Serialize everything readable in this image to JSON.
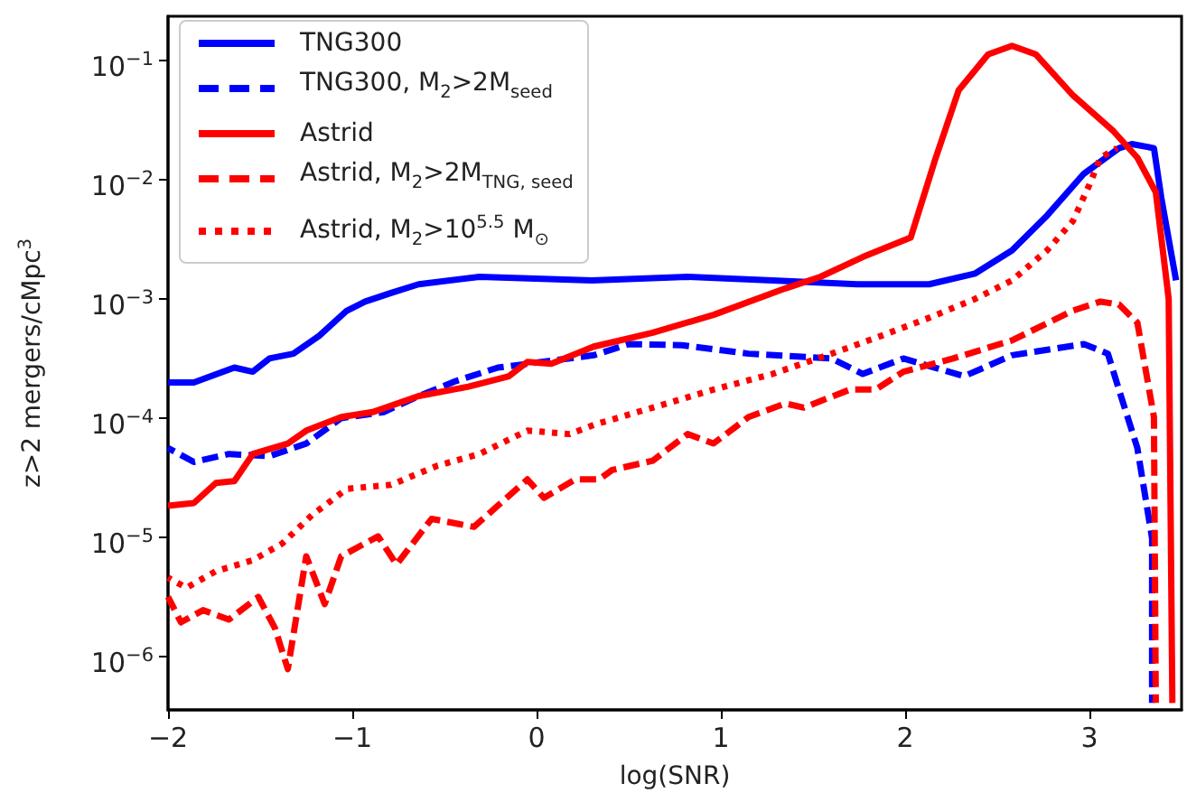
{
  "chart_data": {
    "type": "line",
    "xlabel": "log(SNR)",
    "ylabel": "z>2 mergers/cMpc$^{3}$",
    "log": "y",
    "grid": false,
    "legend": "top left",
    "marker": "none",
    "xlim": [
      -2,
      3.5
    ],
    "xticks": [
      {
        "value": -2,
        "label": "−2"
      },
      {
        "value": -1,
        "label": "−1"
      },
      0,
      1,
      2,
      3
    ],
    "ylim": [
      3.5e-07,
      0.23
    ],
    "yticks": [
      {
        "value": 1e-06,
        "label": "10$^{−6}$"
      },
      {
        "value": 1e-05,
        "label": "10$^{−5}$"
      },
      {
        "value": 0.0001,
        "label": "10$^{−4}$"
      },
      {
        "value": 0.001,
        "label": "10$^{−3}$"
      },
      {
        "value": 0.01,
        "label": "10$^{−2}$"
      },
      {
        "value": 0.1,
        "label": "10$^{−1}$"
      }
    ],
    "series": [
      {
        "name": "TNG300",
        "color": "#0000ff",
        "line_style": "solid",
        "x": [
          -2,
          -1.86,
          -1.64,
          -1.54,
          -1.45,
          -1.32,
          -1.18,
          -1.03,
          -0.93,
          -0.79,
          -0.64,
          -0.31,
          0.3,
          0.82,
          1.28,
          1.74,
          2.13,
          2.38,
          2.58,
          2.77,
          2.97,
          3.16,
          3.23,
          3.35,
          3.39,
          3.47
        ],
        "values": [
          0.000195,
          0.000195,
          0.00026,
          0.00024,
          0.00031,
          0.00034,
          0.00048,
          0.00078,
          0.00093,
          0.0011,
          0.0013,
          0.0015,
          0.0014,
          0.0015,
          0.0014,
          0.0013,
          0.0013,
          0.0016,
          0.0025,
          0.0049,
          0.011,
          0.018,
          0.0195,
          0.018,
          0.0069,
          0.0014
        ]
      },
      {
        "name": "TNG300, M$_{2}$>2M$_{seed}$",
        "color": "#0000ff",
        "line_style": "dashed",
        "x": [
          -2,
          -1.86,
          -1.67,
          -1.45,
          -1.25,
          -1.06,
          -0.83,
          -0.64,
          -0.44,
          -0.21,
          0.31,
          0.5,
          0.79,
          1.15,
          1.6,
          1.77,
          1.99,
          2.32,
          2.58,
          2.97,
          3.1,
          3.16,
          3.26,
          3.34,
          3.34
        ],
        "values": [
          5.5e-05,
          4.2e-05,
          4.9e-05,
          4.7e-05,
          6e-05,
          9.8e-05,
          0.00011,
          0.00015,
          0.0002,
          0.00026,
          0.00033,
          0.00041,
          0.0004,
          0.00034,
          0.00031,
          0.00023,
          0.00031,
          0.00022,
          0.00033,
          0.00041,
          0.00034,
          0.00017,
          5.5e-05,
          9.6e-06,
          4e-07
        ]
      },
      {
        "name": "Astrid",
        "color": "#ff0000",
        "line_style": "solid",
        "x": [
          -2,
          -1.86,
          -1.74,
          -1.64,
          -1.54,
          -1.35,
          -1.25,
          -1.06,
          -0.89,
          -0.64,
          -0.37,
          -0.15,
          -0.05,
          0.08,
          0.31,
          0.63,
          0.96,
          1.35,
          1.54,
          1.77,
          2.03,
          2.16,
          2.29,
          2.45,
          2.58,
          2.71,
          2.91,
          3.13,
          3.26,
          3.36,
          3.43,
          3.45
        ],
        "values": [
          1.8e-05,
          1.9e-05,
          2.8e-05,
          2.9e-05,
          4.9e-05,
          6e-05,
          7.7e-05,
          0.0001,
          0.00011,
          0.00015,
          0.00018,
          0.00022,
          0.00029,
          0.00028,
          0.00039,
          0.00051,
          0.00072,
          0.0012,
          0.0015,
          0.0022,
          0.0032,
          0.014,
          0.055,
          0.11,
          0.13,
          0.11,
          0.05,
          0.025,
          0.015,
          0.0077,
          0.00098,
          4e-07
        ]
      },
      {
        "name": "Astrid, M$_{2}$>2M$_{TNG, seed}$",
        "color": "#ff0000",
        "line_style": "dashed",
        "x": [
          -2,
          -1.93,
          -1.81,
          -1.67,
          -1.51,
          -1.42,
          -1.35,
          -1.25,
          -1.15,
          -1.06,
          -0.86,
          -0.76,
          -0.57,
          -0.34,
          -0.05,
          0.04,
          0.21,
          0.34,
          0.41,
          0.63,
          0.82,
          0.96,
          1.15,
          1.35,
          1.45,
          1.7,
          1.84,
          1.99,
          2.26,
          2.58,
          2.91,
          3.06,
          3.16,
          3.26,
          3.35,
          3.36
        ],
        "values": [
          3.1e-06,
          1.9e-06,
          2.4e-06,
          2e-06,
          3.1e-06,
          1.7e-06,
          7.7e-07,
          6.8e-06,
          2.7e-06,
          6.8e-06,
          1e-05,
          5.8e-06,
          1.4e-05,
          1.2e-05,
          3e-05,
          2.1e-05,
          3e-05,
          3e-05,
          3.6e-05,
          4.3e-05,
          7.2e-05,
          6e-05,
          0.0001,
          0.00013,
          0.00012,
          0.00017,
          0.00017,
          0.00024,
          0.00031,
          0.00044,
          0.00078,
          0.00093,
          0.00088,
          0.00062,
          0.0001,
          4e-07
        ]
      },
      {
        "name": "Astrid, M$_{2}$>10$^{5.5}$ M$_{⊙}$",
        "color": "#ff0000",
        "line_style": "dotted",
        "x": [
          -2,
          -1.9,
          -1.74,
          -1.54,
          -1.38,
          -1.22,
          -1.03,
          -0.79,
          -0.54,
          -0.31,
          -0.05,
          0.18,
          0.31,
          0.63,
          0.96,
          1.28,
          1.6,
          1.87,
          2.13,
          2.38,
          2.58,
          2.77,
          2.91,
          3.0,
          3.06,
          3.15
        ],
        "values": [
          4.5e-06,
          3.7e-06,
          5.1e-06,
          6.3e-06,
          8.7e-06,
          1.5e-05,
          2.5e-05,
          2.7e-05,
          3.9e-05,
          4.9e-05,
          7.7e-05,
          7.2e-05,
          8.6e-05,
          0.00012,
          0.00017,
          0.00023,
          0.00034,
          0.00048,
          0.00068,
          0.00098,
          0.0014,
          0.0025,
          0.0044,
          0.0089,
          0.015,
          0.018
        ]
      }
    ]
  }
}
